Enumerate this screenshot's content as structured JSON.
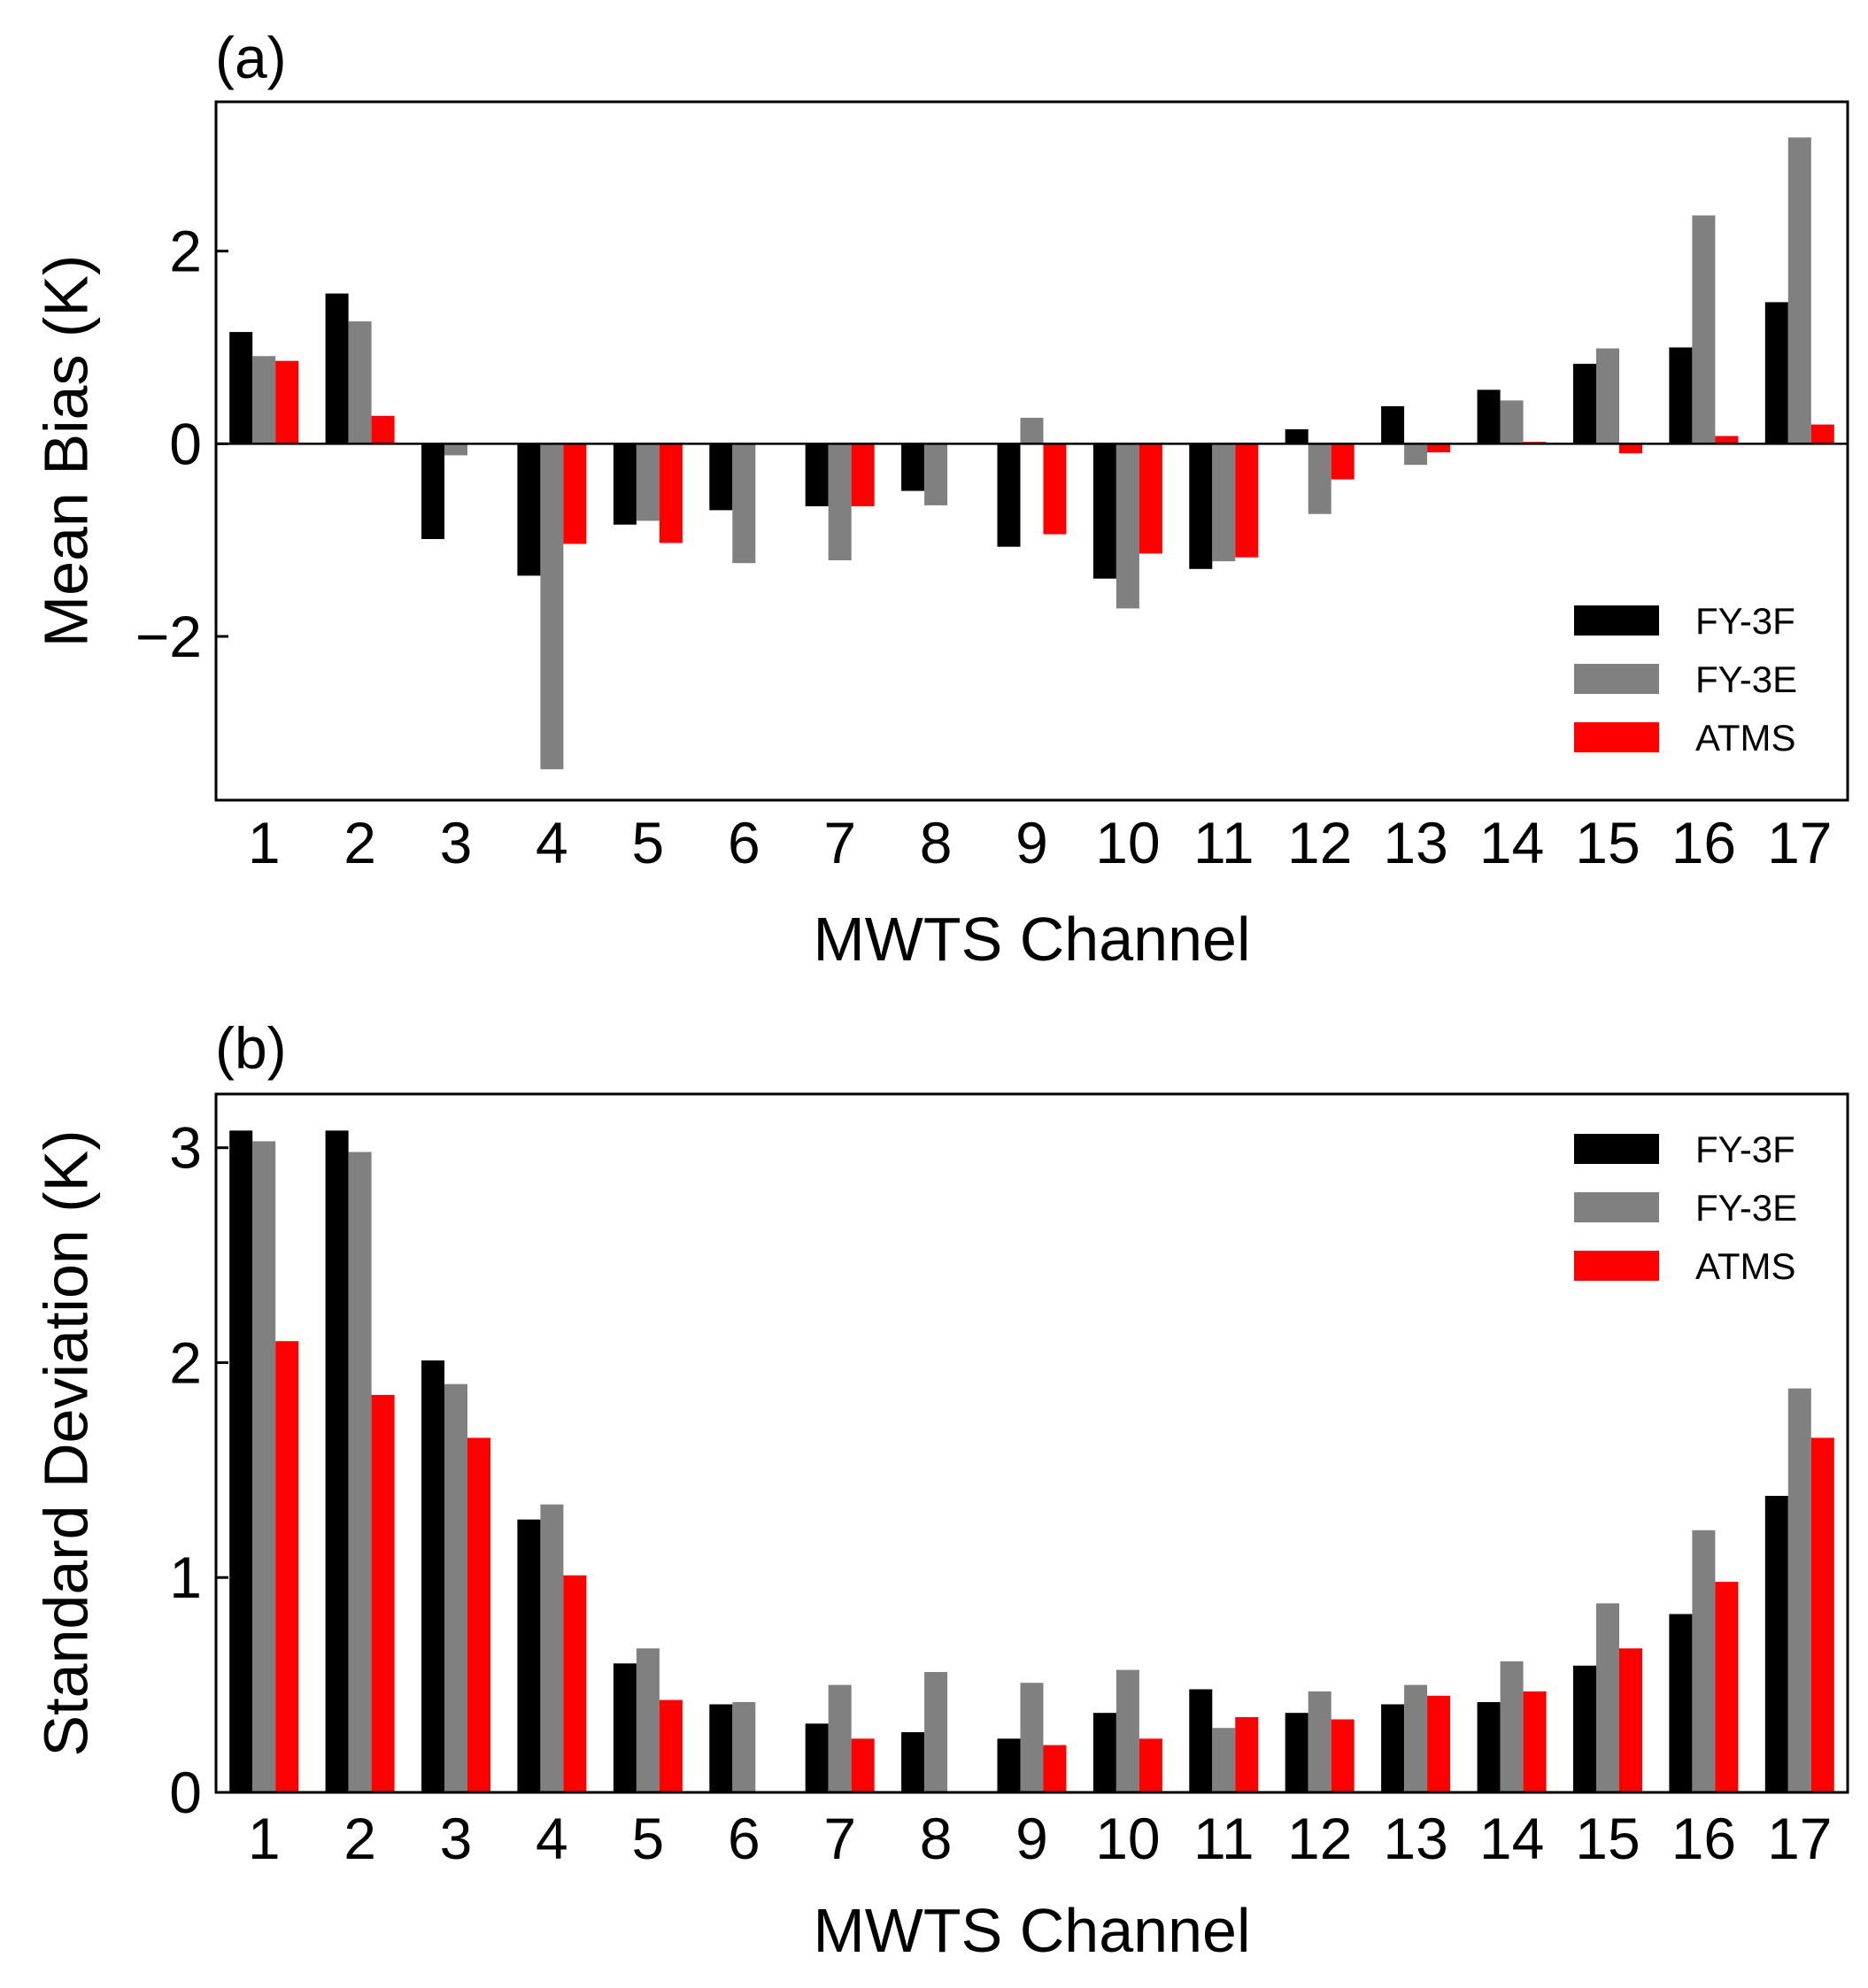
{
  "chart_data": [
    {
      "type": "bar",
      "panel_label": "(a)",
      "xlabel": "MWTS Channel",
      "ylabel": "Mean Bias (K)",
      "categories": [
        "1",
        "2",
        "3",
        "4",
        "5",
        "6",
        "7",
        "8",
        "9",
        "10",
        "11",
        "12",
        "13",
        "14",
        "15",
        "16",
        "17"
      ],
      "ylim": [
        -3.7,
        3.55
      ],
      "yticks": [
        -2,
        0,
        2
      ],
      "ytick_labels": [
        "−2",
        "0",
        "2"
      ],
      "zero_line": true,
      "legend_position": "bottom-right",
      "series": [
        {
          "name": "FY-3F",
          "color": "#000000",
          "values": [
            1.16,
            1.56,
            -0.99,
            -1.37,
            -0.84,
            -0.69,
            -0.65,
            -0.49,
            -1.07,
            -1.4,
            -1.3,
            0.15,
            0.39,
            0.56,
            0.83,
            1.0,
            1.47
          ]
        },
        {
          "name": "FY-3E",
          "color": "#808080",
          "values": [
            0.91,
            1.27,
            -0.12,
            -3.38,
            -0.8,
            -1.24,
            -1.21,
            -0.64,
            0.27,
            -1.71,
            -1.22,
            -0.73,
            -0.22,
            0.45,
            0.99,
            2.37,
            3.18
          ]
        },
        {
          "name": "ATMS",
          "color": "#ff0000",
          "values": [
            0.86,
            0.29,
            0.0,
            -1.04,
            -1.03,
            0.0,
            -0.65,
            0.0,
            -0.94,
            -1.14,
            -1.18,
            -0.37,
            -0.09,
            0.02,
            -0.1,
            0.08,
            0.2
          ]
        }
      ]
    },
    {
      "type": "bar",
      "panel_label": "(b)",
      "xlabel": "MWTS Channel",
      "ylabel": "Standard Deviation (K)",
      "categories": [
        "1",
        "2",
        "3",
        "4",
        "5",
        "6",
        "7",
        "8",
        "9",
        "10",
        "11",
        "12",
        "13",
        "14",
        "15",
        "16",
        "17"
      ],
      "ylim": [
        0,
        3.25
      ],
      "yticks": [
        0,
        1,
        2,
        3
      ],
      "ytick_labels": [
        "0",
        "1",
        "2",
        "3"
      ],
      "zero_line": false,
      "legend_position": "top-right",
      "series": [
        {
          "name": "FY-3F",
          "color": "#000000",
          "values": [
            3.08,
            3.08,
            2.01,
            1.27,
            0.6,
            0.41,
            0.32,
            0.28,
            0.25,
            0.37,
            0.48,
            0.37,
            0.41,
            0.42,
            0.59,
            0.83,
            1.38
          ]
        },
        {
          "name": "FY-3E",
          "color": "#808080",
          "values": [
            3.03,
            2.98,
            1.9,
            1.34,
            0.67,
            0.42,
            0.5,
            0.56,
            0.51,
            0.57,
            0.3,
            0.47,
            0.5,
            0.61,
            0.88,
            1.22,
            1.88
          ]
        },
        {
          "name": "ATMS",
          "color": "#ff0000",
          "values": [
            2.1,
            1.85,
            1.65,
            1.01,
            0.43,
            0.0,
            0.25,
            0.0,
            0.22,
            0.25,
            0.35,
            0.34,
            0.45,
            0.47,
            0.67,
            0.98,
            1.65
          ]
        }
      ]
    }
  ]
}
